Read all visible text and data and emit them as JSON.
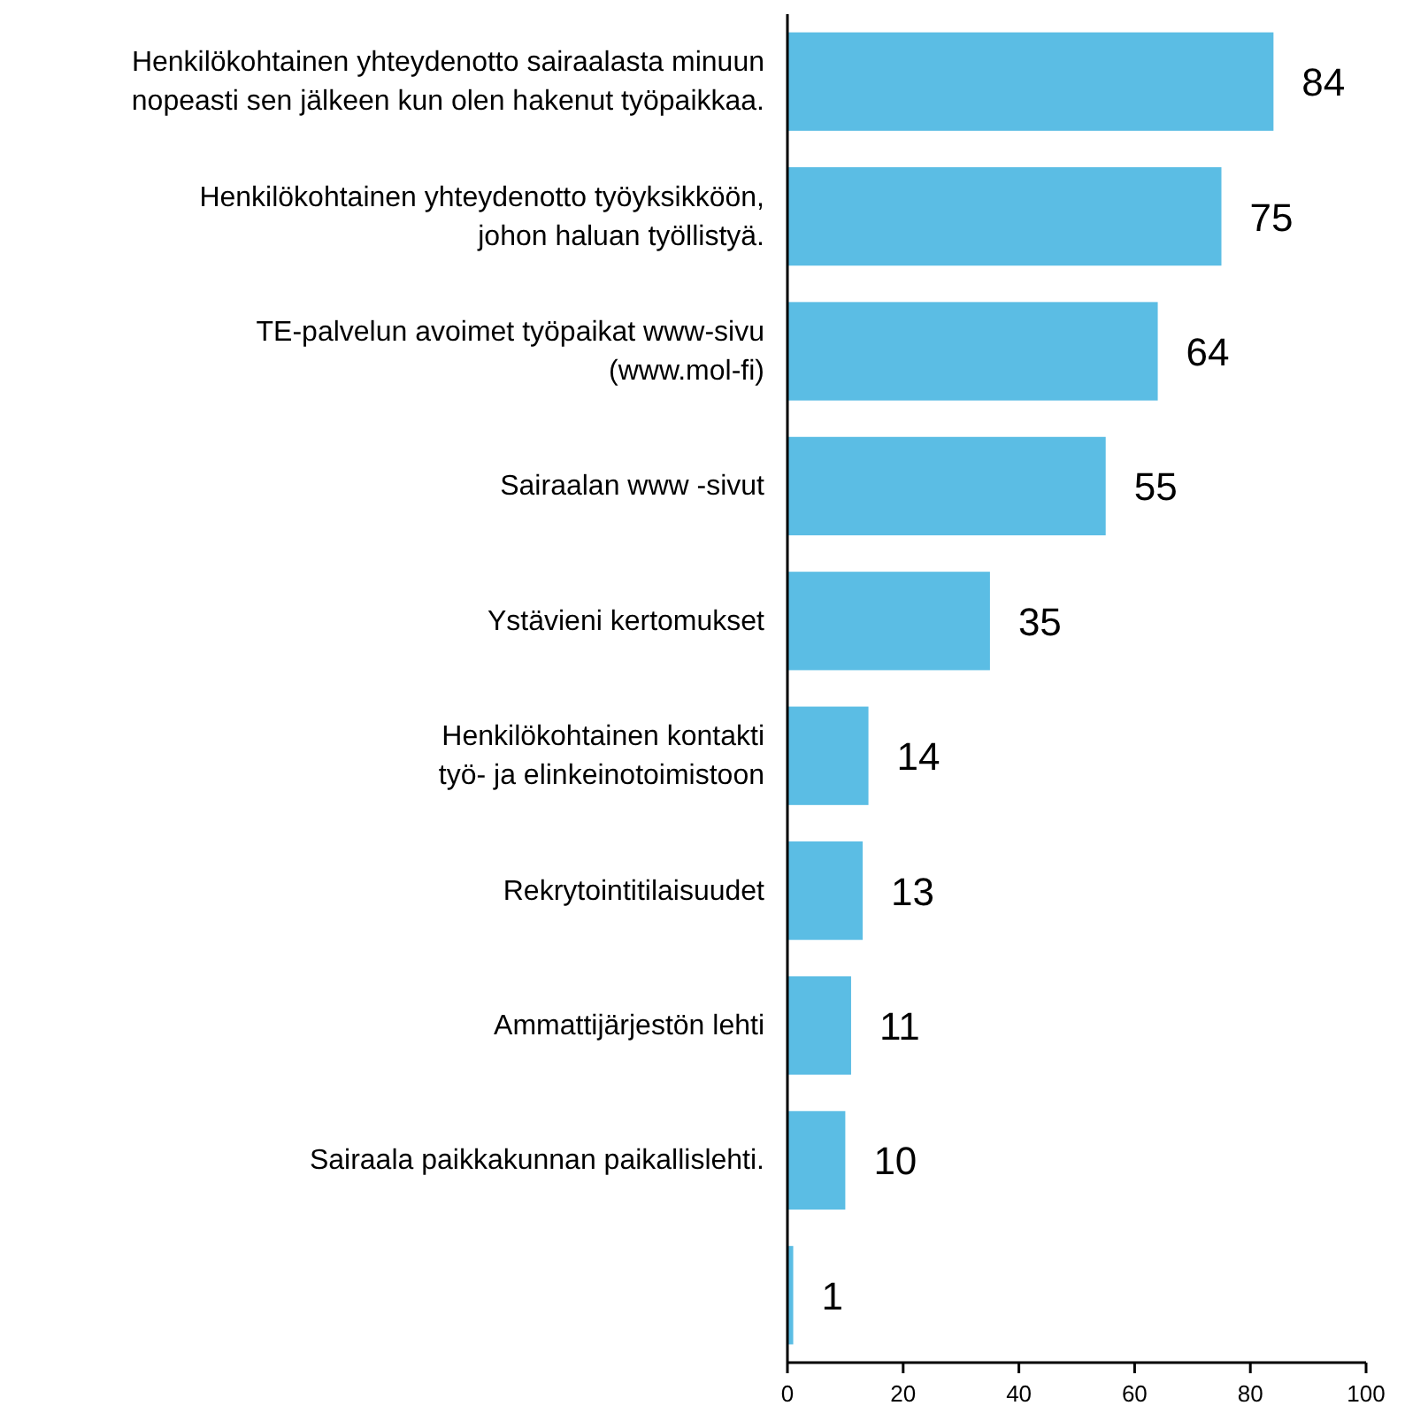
{
  "chart_data": {
    "type": "bar",
    "orientation": "horizontal",
    "categories": [
      "Henkilökohtainen yhteydenotto sairaalasta minuun\nnopeasti sen jälkeen kun olen hakenut työpaikkaa.",
      "Henkilökohtainen yhteydenotto työyksikköön,\njohon haluan työllistyä.",
      "TE-palvelun avoimet työpaikat www-sivu\n(www.mol-fi)",
      "Sairaalan www -sivut",
      "Ystävieni kertomukset",
      "Henkilökohtainen kontakti\ntyö- ja elinkeinotoimistoon",
      "Rekrytointitilaisuudet",
      "Ammattijärjestön lehti",
      "Sairaala paikkakunnan paikallislehti.",
      null
    ],
    "values": [
      84,
      75,
      64,
      55,
      35,
      14,
      13,
      11,
      10,
      1
    ],
    "color": "#5bbde4",
    "xlim": [
      0,
      100
    ],
    "xticks": [
      0,
      20,
      40,
      60,
      80,
      100
    ],
    "data_labels": true
  }
}
